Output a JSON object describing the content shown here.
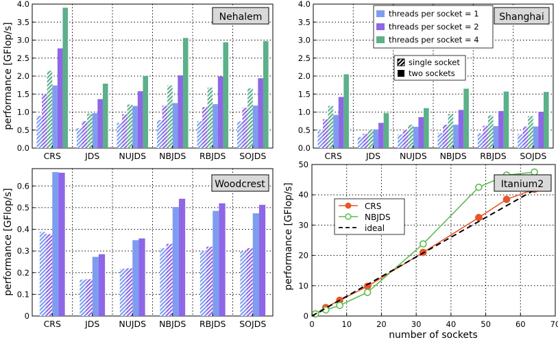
{
  "colors": {
    "t1": "#7f9df0",
    "t2": "#8e66e6",
    "t4": "#5cb08a",
    "crs": "#e8552a",
    "nbjds": "#5cbd4f",
    "ideal": "#000000",
    "grid": "#000000",
    "title_bg": "#d9d9d9"
  },
  "legend_threads": [
    "threads per socket = 1",
    "threads per socket = 2",
    "threads per socket = 4"
  ],
  "legend_sockets": [
    "single socket",
    "two sockets"
  ],
  "chart_data": [
    {
      "id": "nehalem",
      "type": "bar",
      "title": "Nehalem",
      "ylabel": "performance [GFlop/s]",
      "ylim": [
        0,
        4
      ],
      "yticks": [
        "0.0",
        "0.5",
        "1.0",
        "1.5",
        "2.0",
        "2.5",
        "3.0",
        "3.5",
        "4.0"
      ],
      "categories": [
        "CRS",
        "JDS",
        "NUJDS",
        "NBJDS",
        "RBJDS",
        "SOJDS"
      ],
      "series": [
        {
          "name": "threads per socket = 1, single socket",
          "color_key": "t1",
          "hatched": true,
          "values": [
            0.9,
            0.55,
            0.7,
            0.78,
            0.75,
            0.74
          ]
        },
        {
          "name": "threads per socket = 2, single socket",
          "color_key": "t2",
          "hatched": true,
          "values": [
            1.5,
            0.75,
            0.94,
            1.18,
            1.14,
            1.12
          ]
        },
        {
          "name": "threads per socket = 4, single socket",
          "color_key": "t4",
          "hatched": true,
          "values": [
            2.15,
            0.96,
            1.21,
            1.74,
            1.68,
            1.66
          ]
        },
        {
          "name": "threads per socket = 1, two sockets",
          "color_key": "t1",
          "hatched": false,
          "values": [
            1.74,
            0.97,
            1.17,
            1.25,
            1.22,
            1.18
          ]
        },
        {
          "name": "threads per socket = 2, two sockets",
          "color_key": "t2",
          "hatched": false,
          "values": [
            2.77,
            1.36,
            1.58,
            2.02,
            1.99,
            1.94
          ]
        },
        {
          "name": "threads per socket = 4, two sockets",
          "color_key": "t4",
          "hatched": false,
          "values": [
            3.9,
            1.79,
            2.0,
            3.06,
            2.94,
            2.97
          ]
        }
      ]
    },
    {
      "id": "shanghai",
      "type": "bar",
      "title": "Shanghai",
      "ylabel": "",
      "ylim": [
        0,
        4
      ],
      "yticks": [
        "0.0",
        "0.5",
        "1.0",
        "1.5",
        "2.0",
        "2.5",
        "3.0",
        "3.5",
        "4.0"
      ],
      "categories": [
        "CRS",
        "JDS",
        "NUJDS",
        "NBJDS",
        "RBJDS",
        "SOJDS"
      ],
      "series": [
        {
          "name": "threads per socket = 1, single socket",
          "color_key": "t1",
          "hatched": true,
          "values": [
            0.47,
            0.31,
            0.38,
            0.42,
            0.41,
            0.39
          ]
        },
        {
          "name": "threads per socket = 2, single socket",
          "color_key": "t2",
          "hatched": true,
          "values": [
            0.8,
            0.4,
            0.5,
            0.65,
            0.62,
            0.6
          ]
        },
        {
          "name": "threads per socket = 4, single socket",
          "color_key": "t4",
          "hatched": true,
          "values": [
            1.17,
            0.52,
            0.65,
            0.95,
            0.91,
            0.89
          ]
        },
        {
          "name": "threads per socket = 1, two sockets",
          "color_key": "t1",
          "hatched": false,
          "values": [
            0.92,
            0.52,
            0.59,
            0.65,
            0.61,
            0.6
          ]
        },
        {
          "name": "threads per socket = 2, two sockets",
          "color_key": "t2",
          "hatched": false,
          "values": [
            1.42,
            0.7,
            0.86,
            1.06,
            1.03,
            1.01
          ]
        },
        {
          "name": "threads per socket = 4, two sockets",
          "color_key": "t4",
          "hatched": false,
          "values": [
            2.05,
            0.97,
            1.11,
            1.65,
            1.57,
            1.56
          ]
        }
      ]
    },
    {
      "id": "woodcrest",
      "type": "bar",
      "title": "Woodcrest",
      "ylabel": "performance [GFlop/s]",
      "ylim": [
        0,
        0.68
      ],
      "yticks": [
        "0",
        "0.1",
        "0.2",
        "0.3",
        "0.4",
        "0.5",
        "0.6"
      ],
      "ytick_values": [
        0,
        0.1,
        0.2,
        0.3,
        0.4,
        0.5,
        0.6
      ],
      "categories": [
        "CRS",
        "JDS",
        "NUJDS",
        "NBJDS",
        "RBJDS",
        "SOJDS"
      ],
      "series": [
        {
          "name": "threads per socket = 1, single socket",
          "color_key": "t1",
          "hatched": true,
          "values": [
            0.388,
            0.168,
            0.218,
            0.313,
            0.3,
            0.298
          ]
        },
        {
          "name": "threads per socket = 2, single socket",
          "color_key": "t2",
          "hatched": true,
          "values": [
            0.378,
            0.17,
            0.22,
            0.333,
            0.32,
            0.313
          ]
        },
        {
          "name": "threads per socket = 1, two sockets",
          "color_key": "t1",
          "hatched": false,
          "values": [
            0.664,
            0.273,
            0.35,
            0.503,
            0.485,
            0.474
          ]
        },
        {
          "name": "threads per socket = 2, two sockets",
          "color_key": "t2",
          "hatched": false,
          "values": [
            0.661,
            0.285,
            0.358,
            0.541,
            0.52,
            0.513
          ]
        }
      ]
    },
    {
      "id": "itanium2",
      "type": "line",
      "title": "Itanium2",
      "xlabel": "number of sockets",
      "ylabel": "performance [GFlop/s]",
      "xlim": [
        0,
        70
      ],
      "ylim": [
        0,
        50
      ],
      "xticks": [
        "0",
        "10",
        "20",
        "30",
        "40",
        "50",
        "60",
        "70"
      ],
      "xtick_values": [
        0,
        10,
        20,
        30,
        40,
        50,
        60,
        70
      ],
      "yticks": [
        "0",
        "10",
        "20",
        "30",
        "40",
        "50"
      ],
      "ytick_values": [
        0,
        10,
        20,
        30,
        40,
        50
      ],
      "series": [
        {
          "name": "CRS",
          "color_key": "crs",
          "marker": "filled-circle",
          "x": [
            1,
            4,
            8,
            16,
            32,
            48,
            56,
            64
          ],
          "y": [
            0.7,
            2.8,
            5.2,
            9.8,
            21.0,
            32.5,
            38.5,
            41.8
          ]
        },
        {
          "name": "NBJDS",
          "color_key": "nbjds",
          "marker": "open-circle",
          "x": [
            1,
            4,
            8,
            16,
            32,
            48,
            56,
            64
          ],
          "y": [
            0.7,
            2.0,
            3.5,
            7.8,
            23.8,
            42.5,
            46.5,
            47.5
          ]
        },
        {
          "name": "ideal",
          "color_key": "ideal",
          "marker": "none",
          "dashed": true,
          "x": [
            0,
            64
          ],
          "y": [
            0,
            41.6
          ]
        }
      ]
    }
  ]
}
